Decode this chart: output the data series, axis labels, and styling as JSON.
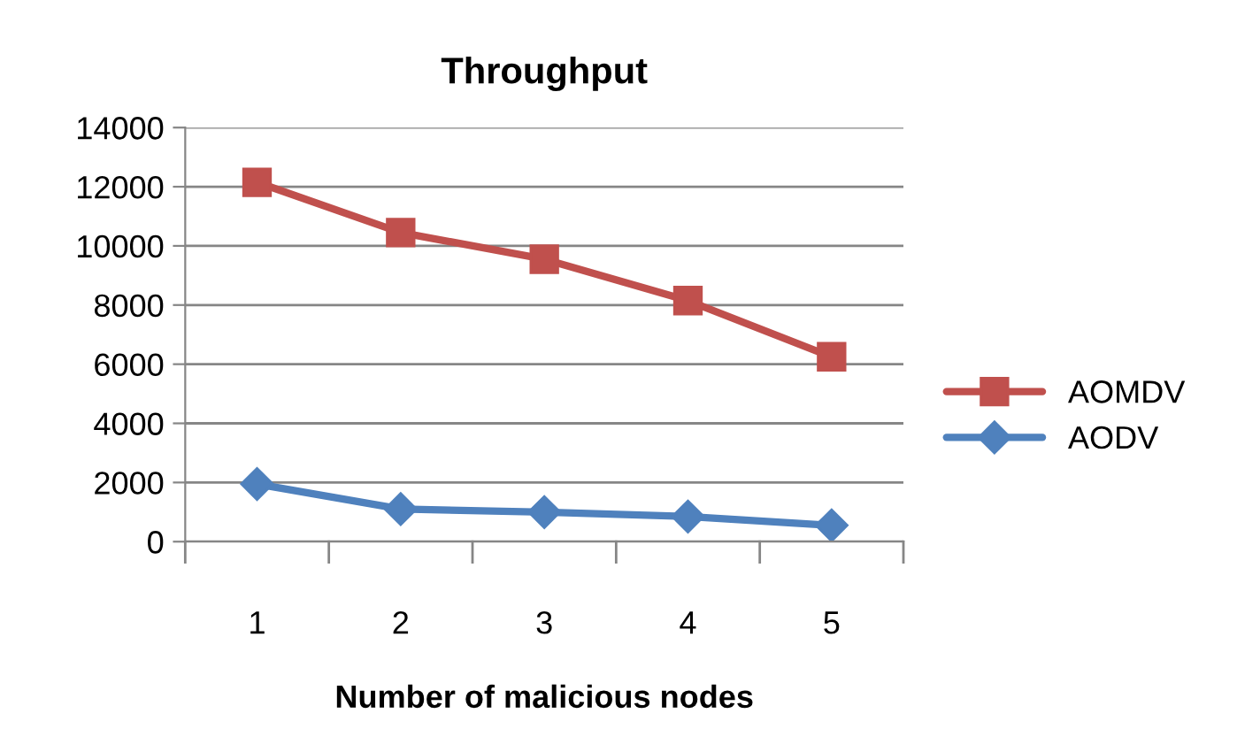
{
  "chart_data": {
    "type": "line",
    "title": "Throughput",
    "xlabel": "Number of malicious nodes",
    "categories": [
      "1",
      "2",
      "3",
      "4",
      "5"
    ],
    "series": [
      {
        "name": "AOMDV",
        "color": "#c0504d",
        "marker": "square",
        "values": [
          12150,
          10450,
          9550,
          8150,
          6250
        ]
      },
      {
        "name": "AODV",
        "color": "#4f81bd",
        "marker": "diamond",
        "values": [
          1950,
          1100,
          1000,
          850,
          550
        ]
      }
    ],
    "ylim": [
      0,
      14000
    ],
    "yticks": [
      0,
      2000,
      4000,
      6000,
      8000,
      10000,
      12000,
      14000
    ],
    "grid": "y",
    "legend": "right"
  }
}
